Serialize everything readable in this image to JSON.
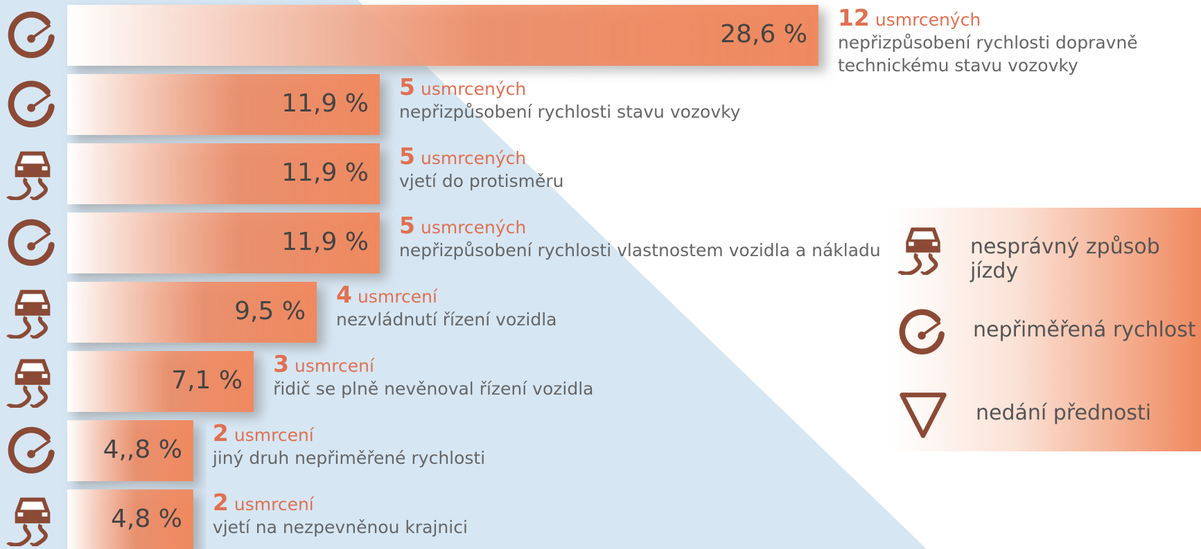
{
  "chart_data": {
    "type": "bar",
    "orientation": "horizontal",
    "color": "#f0895f",
    "icon_color": "#8b4a36",
    "categories": [
      "nepřizpůsobení rychlosti dopravně technickému stavu vozovky",
      "nepřizpůsobení rychlosti stavu vozovky",
      "vjetí do protisměru",
      "nepřizpůsobení rychlosti vlastnostem vozidla a nákladu",
      "nezvládnutí řízení vozidla",
      "řidič se plně nevěnoval řízení vozidla",
      "jiný druh nepřiměřené rychlosti",
      "vjetí na nezpevněnou krajnici"
    ],
    "values": [
      28.6,
      11.9,
      11.9,
      11.9,
      9.5,
      7.1,
      4.8,
      4.8
    ],
    "value_labels": [
      "28,6 %",
      "11,9 %",
      "11,9 %",
      "11,9 %",
      "9,5 %",
      "7,1 %",
      "4,,8 %",
      "4,8 %"
    ],
    "counts": [
      12,
      5,
      5,
      5,
      4,
      3,
      2,
      2
    ],
    "count_labels": [
      "usmrcených",
      "usmrcených",
      "usmrcených",
      "usmrcených",
      "usmrcení",
      "usmrcení",
      "usmrcení",
      "usmrcení"
    ],
    "icons": [
      "speed",
      "speed",
      "skid",
      "speed",
      "skid",
      "skid",
      "speed",
      "skid"
    ],
    "legend": [
      {
        "name": "nesprávný způsob jízdy",
        "icon": "skid"
      },
      {
        "name": "nepřiměřená rychlost",
        "icon": "speed"
      },
      {
        "name": "nedání přednosti",
        "icon": "yield"
      }
    ]
  }
}
